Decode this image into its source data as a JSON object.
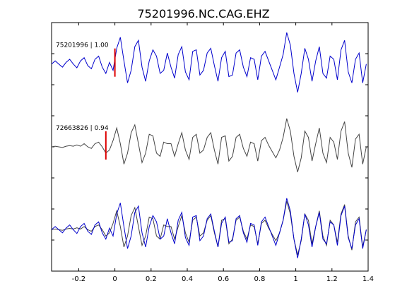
{
  "chart_data": {
    "type": "line",
    "title": "75201996.NC.CAG.EHZ",
    "xlabel": "",
    "ylabel": "",
    "xlim": [
      -0.35,
      1.4
    ],
    "xticks": [
      -0.2,
      0,
      0.2,
      0.4,
      0.6,
      0.8,
      1,
      1.2,
      1.4
    ],
    "xtick_labels": [
      "-0.2",
      "0",
      "0.2",
      "0.4",
      "0.6",
      "0.8",
      "1",
      "1.2",
      "1.4"
    ],
    "grid": false,
    "colors": {
      "blue": "#0000cc",
      "gray": "#444444",
      "pick": "#dd0000"
    },
    "traces": [
      {
        "label": "75201996 | 1.00",
        "color": "blue",
        "pick_time": 0.0,
        "x": [
          -0.35,
          -0.33,
          -0.31,
          -0.29,
          -0.27,
          -0.25,
          -0.23,
          -0.21,
          -0.19,
          -0.17,
          -0.15,
          -0.13,
          -0.11,
          -0.09,
          -0.07,
          -0.05,
          -0.03,
          -0.01,
          0.01,
          0.03,
          0.05,
          0.07,
          0.09,
          0.11,
          0.13,
          0.15,
          0.17,
          0.19,
          0.21,
          0.23,
          0.25,
          0.27,
          0.29,
          0.31,
          0.33,
          0.35,
          0.37,
          0.39,
          0.41,
          0.43,
          0.45,
          0.47,
          0.49,
          0.51,
          0.53,
          0.55,
          0.57,
          0.59,
          0.61,
          0.63,
          0.65,
          0.67,
          0.69,
          0.71,
          0.73,
          0.75,
          0.77,
          0.79,
          0.81,
          0.83,
          0.85,
          0.87,
          0.89,
          0.91,
          0.93,
          0.95,
          0.97,
          0.99,
          1.01,
          1.03,
          1.05,
          1.07,
          1.09,
          1.11,
          1.13,
          1.15,
          1.17,
          1.19,
          1.21,
          1.23,
          1.25,
          1.27,
          1.29,
          1.31,
          1.33,
          1.35,
          1.37,
          1.39
        ],
        "y": [
          0.0,
          0.1,
          0.0,
          -0.1,
          0.05,
          0.15,
          0.0,
          -0.12,
          0.1,
          0.2,
          -0.05,
          -0.15,
          0.15,
          0.25,
          -0.1,
          -0.3,
          0.05,
          -0.2,
          0.5,
          0.85,
          0.1,
          -0.6,
          -0.2,
          0.55,
          0.75,
          -0.1,
          -0.55,
          0.1,
          0.45,
          0.25,
          -0.3,
          -0.2,
          0.35,
          -0.1,
          -0.45,
          0.3,
          0.55,
          -0.25,
          -0.5,
          0.4,
          0.45,
          -0.35,
          -0.2,
          0.35,
          0.5,
          -0.05,
          -0.55,
          0.2,
          0.4,
          -0.4,
          -0.35,
          0.35,
          0.45,
          -0.1,
          -0.4,
          0.2,
          0.15,
          -0.5,
          0.25,
          0.4,
          0.1,
          -0.2,
          -0.5,
          -0.1,
          0.3,
          1.0,
          0.6,
          -0.3,
          -0.9,
          -0.3,
          0.5,
          0.15,
          -0.55,
          0.1,
          0.55,
          -0.3,
          -0.45,
          0.25,
          0.15,
          -0.5,
          0.45,
          0.75,
          -0.25,
          -0.6,
          0.15,
          0.35,
          -0.6,
          0.0
        ]
      },
      {
        "label": "72663826 | 0.94",
        "color": "gray",
        "pick_time": -0.05,
        "x": [
          -0.35,
          -0.33,
          -0.31,
          -0.29,
          -0.27,
          -0.25,
          -0.23,
          -0.21,
          -0.19,
          -0.17,
          -0.15,
          -0.13,
          -0.11,
          -0.09,
          -0.07,
          -0.05,
          -0.03,
          -0.01,
          0.01,
          0.03,
          0.05,
          0.07,
          0.09,
          0.11,
          0.13,
          0.15,
          0.17,
          0.19,
          0.21,
          0.23,
          0.25,
          0.27,
          0.29,
          0.31,
          0.33,
          0.35,
          0.37,
          0.39,
          0.41,
          0.43,
          0.45,
          0.47,
          0.49,
          0.51,
          0.53,
          0.55,
          0.57,
          0.59,
          0.61,
          0.63,
          0.65,
          0.67,
          0.69,
          0.71,
          0.73,
          0.75,
          0.77,
          0.79,
          0.81,
          0.83,
          0.85,
          0.87,
          0.89,
          0.91,
          0.93,
          0.95,
          0.97,
          0.99,
          1.01,
          1.03,
          1.05,
          1.07,
          1.09,
          1.11,
          1.13,
          1.15,
          1.17,
          1.19,
          1.21,
          1.23,
          1.25,
          1.27,
          1.29,
          1.31,
          1.33,
          1.35,
          1.37,
          1.39
        ],
        "y": [
          0.0,
          0.02,
          0.0,
          -0.02,
          0.02,
          0.04,
          0.02,
          0.06,
          0.02,
          0.1,
          0.0,
          -0.05,
          0.1,
          0.15,
          0.0,
          -0.2,
          -0.1,
          0.2,
          0.6,
          0.1,
          -0.55,
          -0.2,
          0.45,
          0.7,
          0.1,
          -0.5,
          -0.2,
          0.4,
          0.35,
          -0.2,
          -0.3,
          0.15,
          0.1,
          0.1,
          -0.3,
          0.1,
          0.45,
          -0.1,
          -0.4,
          0.3,
          0.4,
          -0.2,
          -0.1,
          0.3,
          0.45,
          -0.1,
          -0.55,
          0.3,
          0.35,
          -0.45,
          -0.3,
          0.3,
          0.4,
          -0.05,
          -0.3,
          0.15,
          0.1,
          -0.45,
          0.2,
          0.3,
          0.05,
          -0.15,
          -0.35,
          -0.1,
          0.3,
          0.9,
          0.5,
          -0.3,
          -0.8,
          -0.35,
          0.5,
          0.3,
          -0.45,
          0.1,
          0.6,
          -0.2,
          -0.5,
          0.3,
          0.15,
          -0.4,
          0.5,
          0.8,
          -0.2,
          -0.65,
          0.25,
          0.4,
          -0.55,
          0.0
        ]
      }
    ]
  }
}
